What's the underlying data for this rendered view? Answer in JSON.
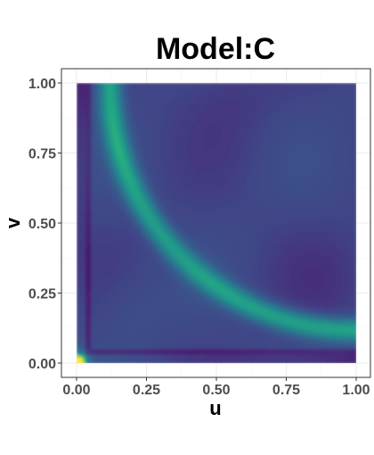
{
  "chart_data": {
    "type": "heatmap",
    "title": "Model:C",
    "xlabel": "u",
    "ylabel": "v",
    "xlim": [
      0,
      1
    ],
    "ylim": [
      0,
      1
    ],
    "x_ticks": [
      "0.00",
      "0.25",
      "0.50",
      "0.75",
      "1.00"
    ],
    "y_ticks": [
      "0.00",
      "0.25",
      "0.50",
      "0.75",
      "1.00"
    ],
    "x_tick_values": [
      0,
      0.25,
      0.5,
      0.75,
      1
    ],
    "y_tick_values": [
      0,
      0.25,
      0.5,
      0.75,
      1
    ],
    "grid": true,
    "colormap": "viridis",
    "colors": {
      "low": "#440154",
      "mid_low": "#3b528b",
      "mid": "#21908d",
      "high": "#5dc863",
      "peak": "#fde725"
    }
  }
}
